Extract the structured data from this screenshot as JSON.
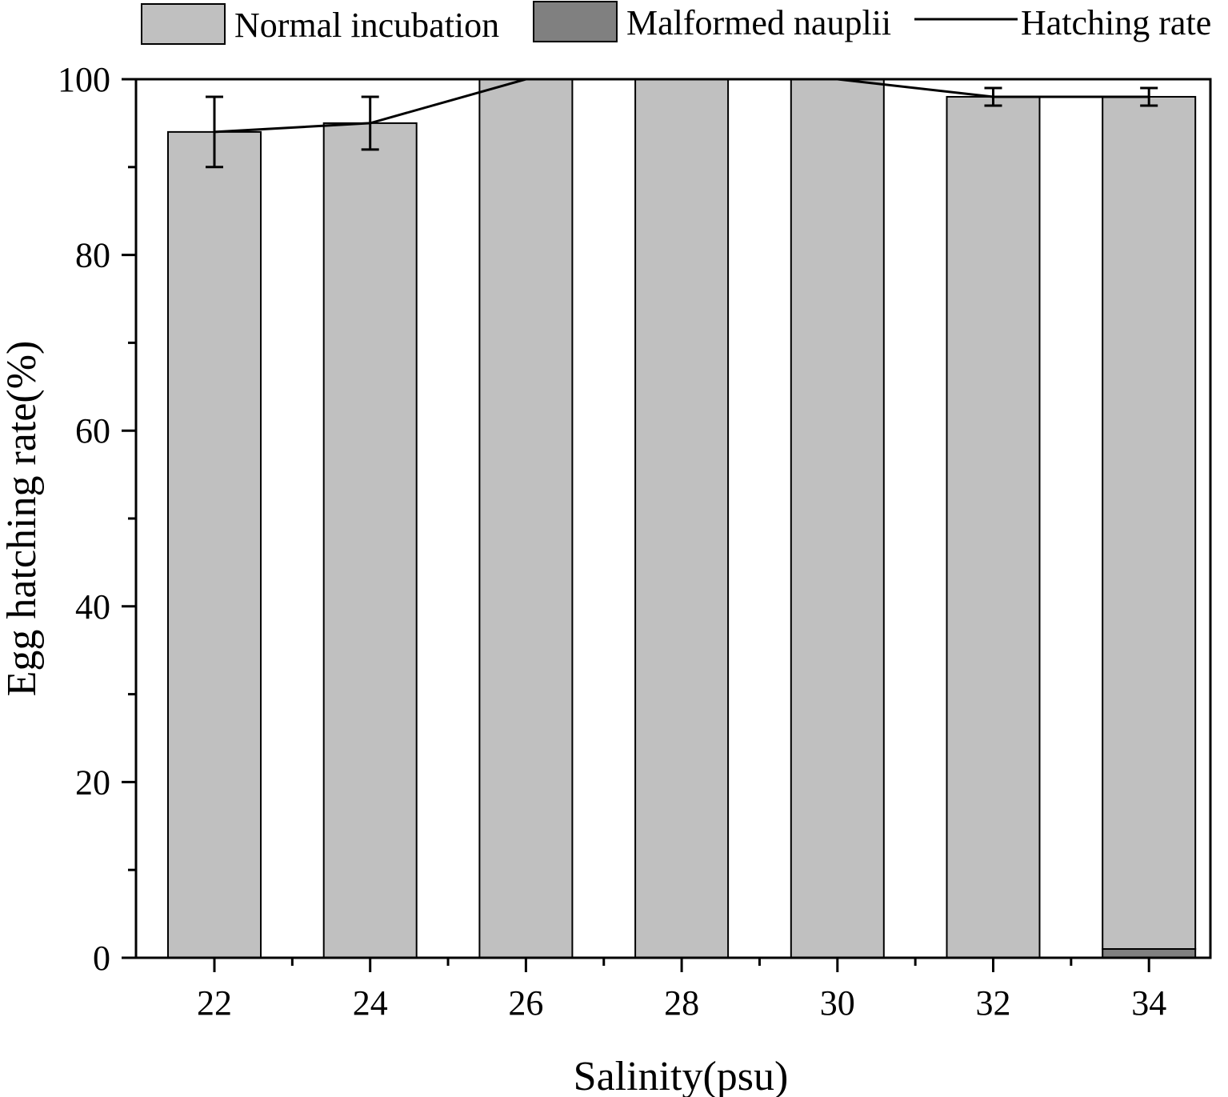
{
  "chart_data": {
    "type": "bar",
    "stacked": true,
    "xlabel": "Salinity(psu)",
    "ylabel": "Egg hatching rate(%)",
    "ylim": [
      0,
      100
    ],
    "yticks": [
      0,
      20,
      40,
      60,
      80,
      100
    ],
    "categories": [
      "22",
      "24",
      "26",
      "28",
      "30",
      "32",
      "34"
    ],
    "series": [
      {
        "name": "Normal incubation",
        "kind": "bar",
        "color": "#c0c0c0",
        "values": [
          94,
          95,
          100,
          100,
          100,
          98,
          97
        ]
      },
      {
        "name": "Malformed nauplii",
        "kind": "bar",
        "color": "#808080",
        "values": [
          0,
          0,
          0,
          0,
          0,
          0,
          1
        ]
      },
      {
        "name": "Hatching rate",
        "kind": "line",
        "color": "#000000",
        "values": [
          94,
          95,
          100,
          100,
          100,
          98,
          98
        ],
        "error": [
          4,
          3,
          0,
          0,
          0,
          1,
          1
        ]
      }
    ],
    "grid": false,
    "legend": "top"
  }
}
